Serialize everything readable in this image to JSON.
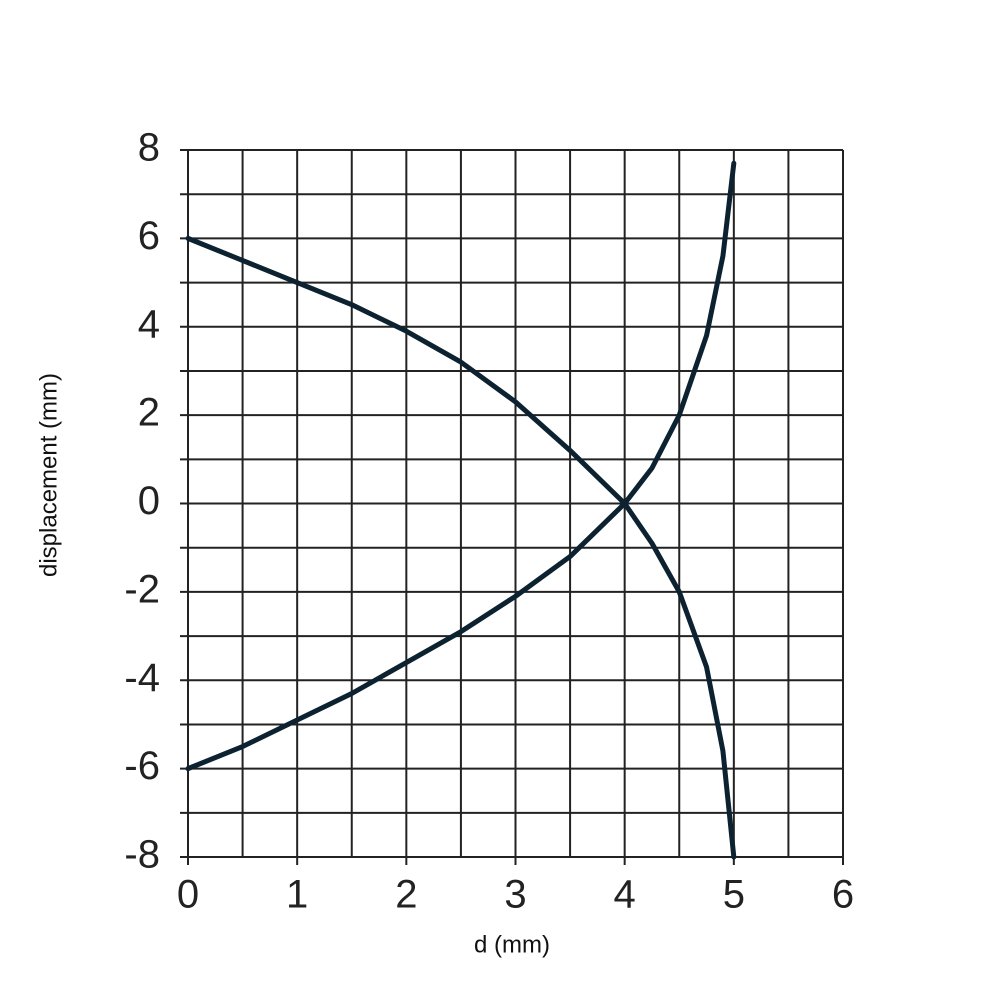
{
  "chart_data": {
    "type": "line",
    "xlabel": "d (mm)",
    "ylabel": "displacement (mm)",
    "xlim": [
      0,
      6
    ],
    "ylim": [
      -8,
      8
    ],
    "xticks": [
      0,
      1,
      2,
      3,
      4,
      5,
      6
    ],
    "yticks": [
      -8,
      -6,
      -4,
      -2,
      0,
      2,
      4,
      6,
      8
    ],
    "xgrid": [
      0.5,
      1.5,
      2.5,
      3.5,
      4.5,
      5.5
    ],
    "ygrid": [
      -7,
      -5,
      -3,
      -1,
      1,
      3,
      5,
      7
    ],
    "grid": true,
    "series": [
      {
        "color": "#0d2230",
        "x": [
          0,
          0.5,
          1,
          1.5,
          2,
          2.5,
          3,
          3.5,
          4,
          4.25,
          4.5,
          4.75,
          4.9,
          5
        ],
        "values": [
          6,
          5.5,
          5,
          4.5,
          3.9,
          3.2,
          2.3,
          1.2,
          0,
          -0.9,
          -2,
          -3.7,
          -5.6,
          -8
        ]
      },
      {
        "color": "#0d2230",
        "x": [
          0,
          0.5,
          1,
          1.5,
          2,
          2.5,
          3,
          3.5,
          4,
          4.25,
          4.5,
          4.75,
          4.9,
          5
        ],
        "values": [
          -6,
          -5.5,
          -4.9,
          -4.3,
          -3.6,
          -2.9,
          -2.1,
          -1.2,
          0,
          0.8,
          2,
          3.8,
          5.6,
          7.7
        ]
      }
    ]
  }
}
